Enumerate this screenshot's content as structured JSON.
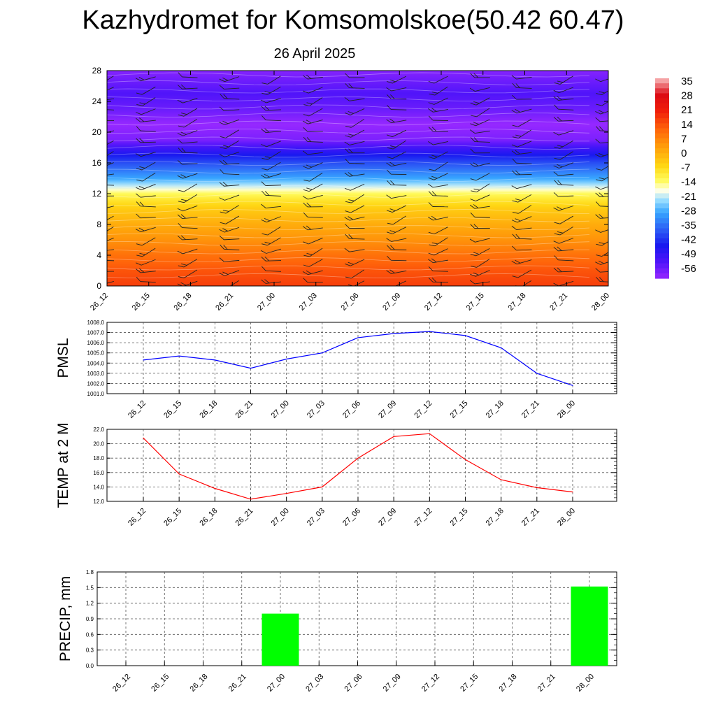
{
  "header": {
    "title": "Kazhydromet for Komsomolskoe(50.42 60.47)",
    "subtitle": "26 April 2025"
  },
  "colors": {
    "pmsl_line": "#0000ff",
    "temp_line": "#ff0000",
    "precip_bar": "#00ff00"
  },
  "chart_data": [
    {
      "type": "heatmap",
      "title": "",
      "xlabel": "",
      "ylabel": "",
      "x": [
        "26_12",
        "26_15",
        "26_18",
        "26_21",
        "27_00",
        "27_03",
        "27_06",
        "27_09",
        "27_12",
        "27_15",
        "27_18",
        "27_21",
        "28_00"
      ],
      "y_ticks": [
        0,
        4,
        8,
        12,
        16,
        20,
        24,
        28
      ],
      "ylim": [
        0,
        28
      ],
      "colorbar": {
        "labels": [
          "35",
          "28",
          "21",
          "14",
          "7",
          "0",
          "-7",
          "-14",
          "-21",
          "-28",
          "-35",
          "-42",
          "-49",
          "-56"
        ],
        "range": [
          -60,
          38
        ]
      },
      "profile": [
        [
          0,
          18
        ],
        [
          2,
          15
        ],
        [
          4,
          11
        ],
        [
          6,
          6
        ],
        [
          8,
          2
        ],
        [
          10,
          -3
        ],
        [
          11,
          -7
        ],
        [
          12,
          -12
        ],
        [
          13,
          -20
        ],
        [
          14,
          -28
        ],
        [
          16,
          -38
        ],
        [
          18,
          -50
        ],
        [
          19,
          -57
        ],
        [
          21,
          -60
        ],
        [
          23,
          -55
        ],
        [
          25,
          -52
        ],
        [
          28,
          -58
        ]
      ],
      "wind_barbs": "present at every time step and level"
    },
    {
      "type": "line",
      "ylabel": "PMSL",
      "x": [
        "26_12",
        "26_15",
        "26_18",
        "26_21",
        "27_00",
        "27_03",
        "27_06",
        "27_09",
        "27_12",
        "27_15",
        "27_18",
        "27_21",
        "28_00"
      ],
      "series": [
        {
          "values": [
            1004.3,
            1004.7,
            1004.3,
            1003.5,
            1004.4,
            1005.0,
            1006.5,
            1006.9,
            1007.1,
            1006.7,
            1005.5,
            1003.0,
            1001.8
          ]
        }
      ],
      "ylim": [
        1001.0,
        1008.0
      ],
      "y_ticks": [
        "1001.0",
        "1002.0",
        "1003.0",
        "1004.0",
        "1005.0",
        "1006.0",
        "1007.0",
        "1008.0"
      ],
      "grid": true
    },
    {
      "type": "line",
      "ylabel": "TEMP at 2 M",
      "x": [
        "26_12",
        "26_15",
        "26_18",
        "26_21",
        "27_00",
        "27_03",
        "27_06",
        "27_09",
        "27_12",
        "27_15",
        "27_18",
        "27_21",
        "28_00"
      ],
      "series": [
        {
          "values": [
            20.8,
            15.8,
            13.8,
            12.3,
            13.1,
            14.0,
            18.0,
            21.0,
            21.4,
            17.8,
            15.0,
            13.9,
            13.3
          ]
        }
      ],
      "ylim": [
        12.0,
        22.0
      ],
      "y_ticks": [
        "12.0",
        "14.0",
        "16.0",
        "18.0",
        "20.0",
        "22.0"
      ],
      "grid": true
    },
    {
      "type": "bar",
      "ylabel": "PRECIP, mm",
      "categories": [
        "26_12",
        "26_15",
        "26_18",
        "26_21",
        "27_00",
        "27_03",
        "27_06",
        "27_09",
        "27_12",
        "27_15",
        "27_18",
        "27_21",
        "28_00"
      ],
      "values": [
        0,
        0,
        0,
        0,
        1.0,
        0,
        0,
        0,
        0,
        0,
        0,
        0,
        1.52
      ],
      "ylim": [
        0,
        1.8
      ],
      "y_ticks": [
        "0.0",
        "0.3",
        "0.6",
        "0.9",
        "1.2",
        "1.5",
        "1.8"
      ],
      "grid": true
    }
  ]
}
